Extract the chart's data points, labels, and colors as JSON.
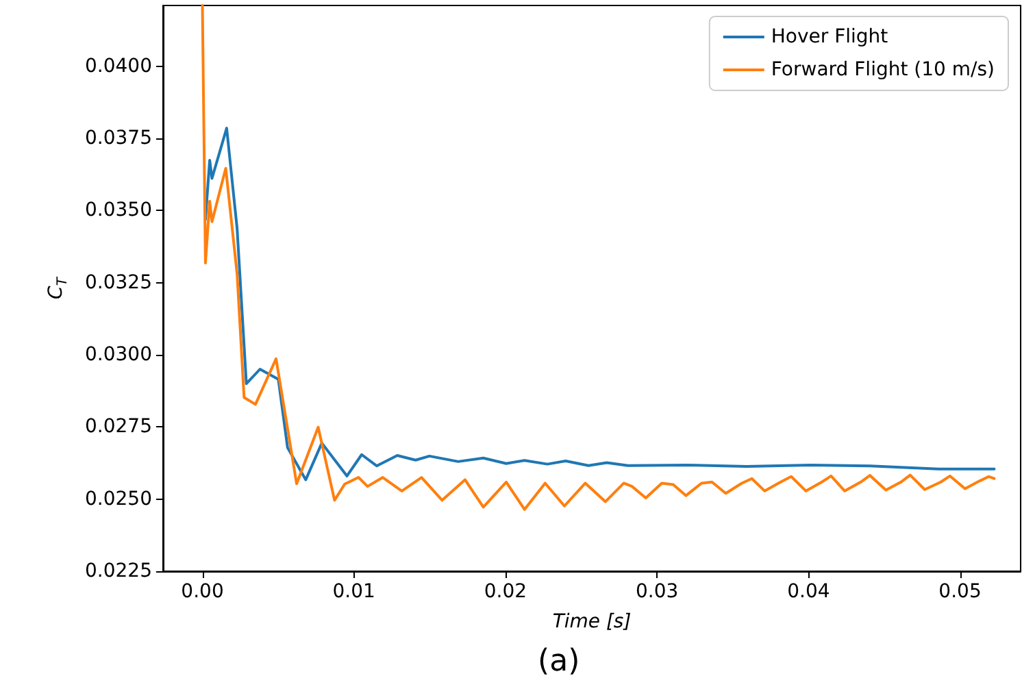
{
  "chart_data": {
    "type": "line",
    "xlabel": "Time [s]",
    "ylabel": "C$_{T}$",
    "annotations": [
      "(a)"
    ],
    "legend": "top right",
    "grid": false,
    "xlim": [
      -0.0026,
      0.054
    ],
    "ylim": [
      0.0225,
      0.0421
    ],
    "xticks": [
      {
        "value": 0,
        "label": "0.00"
      },
      {
        "value": 0.01,
        "label": "0.01"
      },
      {
        "value": 0.02,
        "label": "0.02"
      },
      {
        "value": 0.03,
        "label": "0.03"
      },
      {
        "value": 0.04,
        "label": "0.04"
      },
      {
        "value": 0.05,
        "label": "0.05"
      }
    ],
    "yticks": [
      0.0225,
      {
        "value": 0.025,
        "label": "0.0250"
      },
      0.0275,
      {
        "value": 0.03,
        "label": "0.0300"
      },
      0.0325,
      {
        "value": 0.035,
        "label": "0.0350"
      },
      0.0375,
      {
        "value": 0.04,
        "label": "0.0400"
      }
    ],
    "series": [
      {
        "name": "Hover Flight",
        "color": "#1f77b4",
        "x": [
          0.0002,
          0.00048,
          0.00063,
          0.0016,
          0.00229,
          0.0029,
          0.0038,
          0.00501,
          0.00562,
          0.00682,
          0.00788,
          0.00954,
          0.01051,
          0.0115,
          0.01286,
          0.01407,
          0.01498,
          0.01688,
          0.01854,
          0.02005,
          0.02126,
          0.02277,
          0.02397,
          0.02548,
          0.02669,
          0.02808,
          0.03197,
          0.0359,
          0.04013,
          0.04405,
          0.04858,
          0.05226
        ],
        "values": [
          0.03469,
          0.03674,
          0.03611,
          0.03785,
          0.03437,
          0.029,
          0.0295,
          0.02915,
          0.02678,
          0.02567,
          0.02694,
          0.0258,
          0.02654,
          0.02615,
          0.02651,
          0.02635,
          0.02649,
          0.0263,
          0.02642,
          0.02623,
          0.02634,
          0.02621,
          0.02632,
          0.02616,
          0.02626,
          0.02616,
          0.02618,
          0.02613,
          0.02618,
          0.02615,
          0.02604,
          0.02604
        ]
      },
      {
        "name": "Forward Flight (10 m/s)",
        "color": "#ff7f0e",
        "x": [
          0,
          0.0002,
          0.00048,
          0.00063,
          0.00154,
          0.00229,
          0.00275,
          0.0035,
          0.00486,
          0.00622,
          0.00764,
          0.00872,
          0.00939,
          0.0103,
          0.0109,
          0.0119,
          0.01316,
          0.01446,
          0.01582,
          0.01733,
          0.01854,
          0.02005,
          0.02126,
          0.02262,
          0.02389,
          0.02527,
          0.0266,
          0.02781,
          0.02835,
          0.02926,
          0.03032,
          0.03107,
          0.03191,
          0.03294,
          0.03363,
          0.03454,
          0.0356,
          0.03626,
          0.03711,
          0.03816,
          0.03886,
          0.03983,
          0.04088,
          0.04149,
          0.04239,
          0.04345,
          0.04405,
          0.04511,
          0.0461,
          0.04671,
          0.04767,
          0.04873,
          0.04934,
          0.05033,
          0.0513,
          0.0519,
          0.05226
        ],
        "values": [
          0.0421,
          0.03318,
          0.03532,
          0.03461,
          0.03646,
          0.03279,
          0.02852,
          0.02828,
          0.02986,
          0.02553,
          0.02749,
          0.02496,
          0.02552,
          0.02575,
          0.02544,
          0.02575,
          0.02528,
          0.02575,
          0.02496,
          0.02567,
          0.02472,
          0.02559,
          0.02464,
          0.02555,
          0.02476,
          0.02555,
          0.02491,
          0.02555,
          0.02544,
          0.02504,
          0.02555,
          0.0255,
          0.02512,
          0.02555,
          0.02559,
          0.0252,
          0.02555,
          0.02571,
          0.02528,
          0.02559,
          0.02578,
          0.02528,
          0.02559,
          0.0258,
          0.02528,
          0.02559,
          0.02582,
          0.02531,
          0.02559,
          0.02583,
          0.02533,
          0.02559,
          0.0258,
          0.02536,
          0.02563,
          0.02578,
          0.02571
        ]
      }
    ]
  }
}
